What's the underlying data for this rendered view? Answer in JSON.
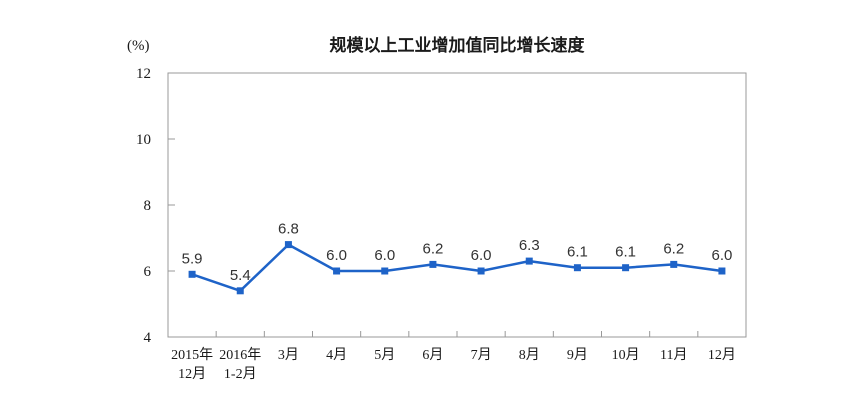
{
  "chart": {
    "title": "规模以上工业增加值同比增长速度",
    "unit_label": "(%)"
  },
  "chart_data": {
    "type": "line",
    "title": "规模以上工业增加值同比增长速度",
    "ylabel": "(%)",
    "xlabel": "",
    "categories": [
      "2015年\n12月",
      "2016年\n1-2月",
      "3月",
      "4月",
      "5月",
      "6月",
      "7月",
      "8月",
      "9月",
      "10月",
      "11月",
      "12月"
    ],
    "values": [
      5.9,
      5.4,
      6.8,
      6.0,
      6.0,
      6.2,
      6.0,
      6.3,
      6.1,
      6.1,
      6.2,
      6.0
    ],
    "data_labels": [
      "5.9",
      "5.4",
      "6.8",
      "6.0",
      "6.0",
      "6.2",
      "6.0",
      "6.3",
      "6.1",
      "6.1",
      "6.2",
      "6.0"
    ],
    "ylim": [
      4,
      12
    ],
    "yticks": [
      4,
      6,
      8,
      10,
      12
    ],
    "grid": false,
    "legend": "none",
    "marker": "square",
    "line_color": "#1e63c8",
    "axis_color": "#999999",
    "text_color": "#1a1a1a",
    "data_label_color": "#333333"
  }
}
